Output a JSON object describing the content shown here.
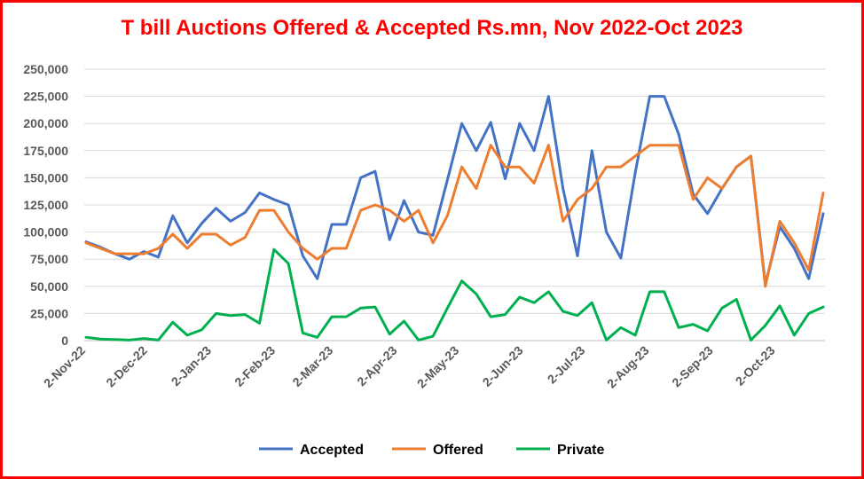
{
  "chart_data": {
    "type": "line",
    "title": "T bill Auctions Offered & Accepted Rs.mn, Nov 2022-Oct 2023",
    "title_color": "#ff0000",
    "xlabel": "",
    "ylabel": "",
    "ylim": [
      0,
      250000
    ],
    "y_ticks": [
      "0",
      "25,000",
      "50,000",
      "75,000",
      "100,000",
      "125,000",
      "150,000",
      "175,000",
      "200,000",
      "225,000",
      "250,000"
    ],
    "x_ticks": [
      "2-Nov-22",
      "2-Dec-22",
      "2-Jan-23",
      "2-Feb-23",
      "2-Mar-23",
      "2-Apr-23",
      "2-May-23",
      "2-Jun-23",
      "2-Jul-23",
      "2-Aug-23",
      "2-Sep-23",
      "2-Oct-23"
    ],
    "grid": true,
    "legend": "bottom",
    "series": [
      {
        "name": "Accepted",
        "color": "#4472c4",
        "points": [
          [
            "2022-11-02",
            91000
          ],
          [
            "2022-11-09",
            86000
          ],
          [
            "2022-11-16",
            80000
          ],
          [
            "2022-11-23",
            75000
          ],
          [
            "2022-11-30",
            82000
          ],
          [
            "2022-12-07",
            77000
          ],
          [
            "2022-12-14",
            115000
          ],
          [
            "2022-12-21",
            90000
          ],
          [
            "2022-12-28",
            108000
          ],
          [
            "2023-01-04",
            122000
          ],
          [
            "2023-01-11",
            110000
          ],
          [
            "2023-01-18",
            118000
          ],
          [
            "2023-01-25",
            136000
          ],
          [
            "2023-02-01",
            130000
          ],
          [
            "2023-02-08",
            125000
          ],
          [
            "2023-02-15",
            78000
          ],
          [
            "2023-02-22",
            57000
          ],
          [
            "2023-03-01",
            107000
          ],
          [
            "2023-03-08",
            107000
          ],
          [
            "2023-03-15",
            150000
          ],
          [
            "2023-03-22",
            156000
          ],
          [
            "2023-03-29",
            93000
          ],
          [
            "2023-04-05",
            129000
          ],
          [
            "2023-04-12",
            100000
          ],
          [
            "2023-04-19",
            97000
          ],
          [
            "2023-04-26",
            148000
          ],
          [
            "2023-05-03",
            200000
          ],
          [
            "2023-05-10",
            175000
          ],
          [
            "2023-05-17",
            201000
          ],
          [
            "2023-05-24",
            149000
          ],
          [
            "2023-05-31",
            200000
          ],
          [
            "2023-06-07",
            175000
          ],
          [
            "2023-06-14",
            225000
          ],
          [
            "2023-06-21",
            140000
          ],
          [
            "2023-06-28",
            78000
          ],
          [
            "2023-07-05",
            175000
          ],
          [
            "2023-07-12",
            100000
          ],
          [
            "2023-07-19",
            76000
          ],
          [
            "2023-07-26",
            155000
          ],
          [
            "2023-08-02",
            225000
          ],
          [
            "2023-08-09",
            225000
          ],
          [
            "2023-08-16",
            190000
          ],
          [
            "2023-08-23",
            135000
          ],
          [
            "2023-08-30",
            117000
          ],
          [
            "2023-09-06",
            140000
          ],
          [
            "2023-09-13",
            160000
          ],
          [
            "2023-09-20",
            170000
          ],
          [
            "2023-09-27",
            52000
          ],
          [
            "2023-10-04",
            105000
          ],
          [
            "2023-10-11",
            85000
          ],
          [
            "2023-10-18",
            57000
          ],
          [
            "2023-10-25",
            117000
          ]
        ]
      },
      {
        "name": "Offered",
        "color": "#ed7d31",
        "points": [
          [
            "2022-11-02",
            90000
          ],
          [
            "2022-11-09",
            85000
          ],
          [
            "2022-11-16",
            80000
          ],
          [
            "2022-11-23",
            80000
          ],
          [
            "2022-11-30",
            80000
          ],
          [
            "2022-12-07",
            85000
          ],
          [
            "2022-12-14",
            98000
          ],
          [
            "2022-12-21",
            85000
          ],
          [
            "2022-12-28",
            98000
          ],
          [
            "2023-01-04",
            98000
          ],
          [
            "2023-01-11",
            88000
          ],
          [
            "2023-01-18",
            95000
          ],
          [
            "2023-01-25",
            120000
          ],
          [
            "2023-02-01",
            120000
          ],
          [
            "2023-02-08",
            100000
          ],
          [
            "2023-02-15",
            85000
          ],
          [
            "2023-02-22",
            75000
          ],
          [
            "2023-03-01",
            85000
          ],
          [
            "2023-03-08",
            85000
          ],
          [
            "2023-03-15",
            120000
          ],
          [
            "2023-03-22",
            125000
          ],
          [
            "2023-03-29",
            120000
          ],
          [
            "2023-04-05",
            110000
          ],
          [
            "2023-04-12",
            120000
          ],
          [
            "2023-04-19",
            90000
          ],
          [
            "2023-04-26",
            115000
          ],
          [
            "2023-05-03",
            160000
          ],
          [
            "2023-05-10",
            140000
          ],
          [
            "2023-05-17",
            180000
          ],
          [
            "2023-05-24",
            160000
          ],
          [
            "2023-05-31",
            160000
          ],
          [
            "2023-06-07",
            145000
          ],
          [
            "2023-06-14",
            180000
          ],
          [
            "2023-06-21",
            110000
          ],
          [
            "2023-06-28",
            130000
          ],
          [
            "2023-07-05",
            140000
          ],
          [
            "2023-07-12",
            160000
          ],
          [
            "2023-07-19",
            160000
          ],
          [
            "2023-07-26",
            170000
          ],
          [
            "2023-08-02",
            180000
          ],
          [
            "2023-08-09",
            180000
          ],
          [
            "2023-08-16",
            180000
          ],
          [
            "2023-08-23",
            130000
          ],
          [
            "2023-08-30",
            150000
          ],
          [
            "2023-09-06",
            140000
          ],
          [
            "2023-09-13",
            160000
          ],
          [
            "2023-09-20",
            170000
          ],
          [
            "2023-09-27",
            50000
          ],
          [
            "2023-10-04",
            110000
          ],
          [
            "2023-10-11",
            90000
          ],
          [
            "2023-10-18",
            65000
          ],
          [
            "2023-10-25",
            136000
          ]
        ]
      },
      {
        "name": "Private",
        "color": "#00b050",
        "points": [
          [
            "2022-11-02",
            3000
          ],
          [
            "2022-11-09",
            1500
          ],
          [
            "2022-11-16",
            1000
          ],
          [
            "2022-11-23",
            500
          ],
          [
            "2022-11-30",
            2000
          ],
          [
            "2022-12-07",
            500
          ],
          [
            "2022-12-14",
            17000
          ],
          [
            "2022-12-21",
            5000
          ],
          [
            "2022-12-28",
            10000
          ],
          [
            "2023-01-04",
            25000
          ],
          [
            "2023-01-11",
            23000
          ],
          [
            "2023-01-18",
            24000
          ],
          [
            "2023-01-25",
            16000
          ],
          [
            "2023-02-01",
            84000
          ],
          [
            "2023-02-08",
            71000
          ],
          [
            "2023-02-15",
            7000
          ],
          [
            "2023-02-22",
            3000
          ],
          [
            "2023-03-01",
            22000
          ],
          [
            "2023-03-08",
            22000
          ],
          [
            "2023-03-15",
            30000
          ],
          [
            "2023-03-22",
            31000
          ],
          [
            "2023-03-29",
            6000
          ],
          [
            "2023-04-05",
            18000
          ],
          [
            "2023-04-12",
            500
          ],
          [
            "2023-04-19",
            4000
          ],
          [
            "2023-04-26",
            30000
          ],
          [
            "2023-05-03",
            55000
          ],
          [
            "2023-05-10",
            43000
          ],
          [
            "2023-05-17",
            22000
          ],
          [
            "2023-05-24",
            24000
          ],
          [
            "2023-05-31",
            40000
          ],
          [
            "2023-06-07",
            35000
          ],
          [
            "2023-06-14",
            45000
          ],
          [
            "2023-06-21",
            27000
          ],
          [
            "2023-06-28",
            23000
          ],
          [
            "2023-07-05",
            35000
          ],
          [
            "2023-07-12",
            500
          ],
          [
            "2023-07-19",
            12000
          ],
          [
            "2023-07-26",
            5000
          ],
          [
            "2023-08-02",
            45000
          ],
          [
            "2023-08-09",
            45000
          ],
          [
            "2023-08-16",
            12000
          ],
          [
            "2023-08-23",
            15000
          ],
          [
            "2023-08-30",
            9000
          ],
          [
            "2023-09-06",
            30000
          ],
          [
            "2023-09-13",
            38000
          ],
          [
            "2023-09-20",
            500
          ],
          [
            "2023-09-27",
            14000
          ],
          [
            "2023-10-04",
            32000
          ],
          [
            "2023-10-11",
            5000
          ],
          [
            "2023-10-18",
            25000
          ],
          [
            "2023-10-25",
            31000
          ]
        ]
      }
    ]
  },
  "style": {
    "gridline_color": "#d9d9d9",
    "axis_color": "#bfbfbf",
    "frame_color": "#ff0000"
  }
}
